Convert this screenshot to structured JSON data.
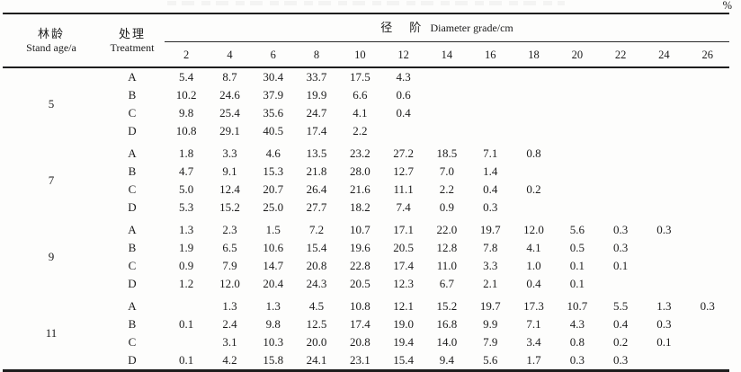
{
  "unit_label": "%",
  "table": {
    "col1_header_zh": "林龄",
    "col1_header_en": "Stand age/a",
    "col2_header_zh": "处理",
    "col2_header_en": "Treatment",
    "spanner_zh_1": "径",
    "spanner_zh_2": "阶",
    "spanner_en": "Diameter grade/cm",
    "diameter_grades": [
      "2",
      "4",
      "6",
      "8",
      "10",
      "12",
      "14",
      "16",
      "18",
      "20",
      "22",
      "24",
      "26"
    ],
    "groups": [
      {
        "age": "5",
        "rows": [
          {
            "treatment": "A",
            "values": [
              "5.4",
              "8.7",
              "30.4",
              "33.7",
              "17.5",
              "4.3",
              "",
              "",
              "",
              "",
              "",
              "",
              ""
            ]
          },
          {
            "treatment": "B",
            "values": [
              "10.2",
              "24.6",
              "37.9",
              "19.9",
              "6.6",
              "0.6",
              "",
              "",
              "",
              "",
              "",
              "",
              ""
            ]
          },
          {
            "treatment": "C",
            "values": [
              "9.8",
              "25.4",
              "35.6",
              "24.7",
              "4.1",
              "0.4",
              "",
              "",
              "",
              "",
              "",
              "",
              ""
            ]
          },
          {
            "treatment": "D",
            "values": [
              "10.8",
              "29.1",
              "40.5",
              "17.4",
              "2.2",
              "",
              "",
              "",
              "",
              "",
              "",
              "",
              ""
            ]
          }
        ]
      },
      {
        "age": "7",
        "rows": [
          {
            "treatment": "A",
            "values": [
              "1.8",
              "3.3",
              "4.6",
              "13.5",
              "23.2",
              "27.2",
              "18.5",
              "7.1",
              "0.8",
              "",
              "",
              "",
              ""
            ]
          },
          {
            "treatment": "B",
            "values": [
              "4.7",
              "9.1",
              "15.3",
              "21.8",
              "28.0",
              "12.7",
              "7.0",
              "1.4",
              "",
              "",
              "",
              "",
              ""
            ]
          },
          {
            "treatment": "C",
            "values": [
              "5.0",
              "12.4",
              "20.7",
              "26.4",
              "21.6",
              "11.1",
              "2.2",
              "0.4",
              "0.2",
              "",
              "",
              "",
              ""
            ]
          },
          {
            "treatment": "D",
            "values": [
              "5.3",
              "15.2",
              "25.0",
              "27.7",
              "18.2",
              "7.4",
              "0.9",
              "0.3",
              "",
              "",
              "",
              "",
              ""
            ]
          }
        ]
      },
      {
        "age": "9",
        "rows": [
          {
            "treatment": "A",
            "values": [
              "1.3",
              "2.3",
              "1.5",
              "7.2",
              "10.7",
              "17.1",
              "22.0",
              "19.7",
              "12.0",
              "5.6",
              "0.3",
              "0.3",
              ""
            ]
          },
          {
            "treatment": "B",
            "values": [
              "1.9",
              "6.5",
              "10.6",
              "15.4",
              "19.6",
              "20.5",
              "12.8",
              "7.8",
              "4.1",
              "0.5",
              "0.3",
              "",
              ""
            ]
          },
          {
            "treatment": "C",
            "values": [
              "0.9",
              "7.9",
              "14.7",
              "20.8",
              "22.8",
              "17.4",
              "11.0",
              "3.3",
              "1.0",
              "0.1",
              "0.1",
              "",
              ""
            ]
          },
          {
            "treatment": "D",
            "values": [
              "1.2",
              "12.0",
              "20.4",
              "24.3",
              "20.5",
              "12.3",
              "6.7",
              "2.1",
              "0.4",
              "0.1",
              "",
              "",
              ""
            ]
          }
        ]
      },
      {
        "age": "11",
        "rows": [
          {
            "treatment": "A",
            "values": [
              "",
              "1.3",
              "1.3",
              "4.5",
              "10.8",
              "12.1",
              "15.2",
              "19.7",
              "17.3",
              "10.7",
              "5.5",
              "1.3",
              "0.3"
            ]
          },
          {
            "treatment": "B",
            "values": [
              "0.1",
              "2.4",
              "9.8",
              "12.5",
              "17.4",
              "19.0",
              "16.8",
              "9.9",
              "7.1",
              "4.3",
              "0.4",
              "0.3",
              ""
            ]
          },
          {
            "treatment": "C",
            "values": [
              "",
              "3.1",
              "10.3",
              "20.0",
              "20.8",
              "19.4",
              "14.0",
              "7.9",
              "3.4",
              "0.8",
              "0.2",
              "0.1",
              ""
            ]
          },
          {
            "treatment": "D",
            "values": [
              "0.1",
              "4.2",
              "15.8",
              "24.1",
              "23.1",
              "15.4",
              "9.4",
              "5.6",
              "1.7",
              "0.3",
              "0.3",
              "",
              ""
            ]
          }
        ]
      }
    ]
  }
}
